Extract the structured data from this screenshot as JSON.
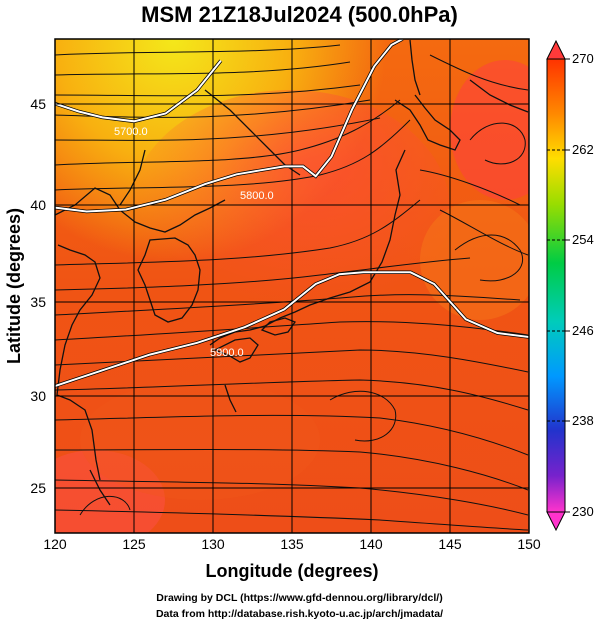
{
  "title": "MSM 21Z18Jul2024 (500.0hPa)",
  "x_axis": {
    "label": "Longitude (degrees)",
    "ticks": [
      120,
      125,
      130,
      135,
      140,
      145,
      150
    ],
    "range": [
      120,
      150
    ]
  },
  "y_axis": {
    "label": "Latitude  (degrees)",
    "ticks": [
      25,
      30,
      35,
      40,
      45
    ],
    "range": [
      22.4,
      47.6
    ]
  },
  "colorbar": {
    "ticks": [
      270,
      262,
      254,
      246,
      238,
      230
    ],
    "range": [
      230,
      270
    ],
    "colors": [
      "#ff33cc",
      "#3333cc",
      "#0088ff",
      "#00cccc",
      "#00cc44",
      "#aadd00",
      "#ffee00",
      "#ff9900",
      "#ff3300"
    ]
  },
  "contours": [
    {
      "label": "5700.0"
    },
    {
      "label": "5800.0"
    },
    {
      "label": "5900.0"
    }
  ],
  "credits": {
    "line1": "Drawing by DCL (https://www.gfd-dennou.org/library/dcl/)",
    "line2": "Data from http://database.rish.kyoto-u.ac.jp/arch/jmadata/"
  },
  "chart_data": {
    "type": "heatmap",
    "title": "MSM 21Z18Jul2024 (500.0hPa)",
    "xlabel": "Longitude (degrees)",
    "ylabel": "Latitude  (degrees)",
    "xlim": [
      120,
      150
    ],
    "ylim": [
      22.4,
      47.6
    ],
    "color_scale": [
      230,
      270
    ],
    "contour_levels": [
      5700,
      5800,
      5900
    ],
    "contour_lines": [
      {
        "level": 5700,
        "lon": [
          120.0,
          121.5,
          123.0,
          125.0,
          127.0,
          129.0,
          130.5
        ],
        "lat": [
          44.3,
          43.9,
          43.6,
          43.4,
          43.8,
          45.0,
          46.5
        ]
      },
      {
        "level": 5800,
        "lon": [
          120.0,
          122.0,
          124.5,
          127.0,
          129.5,
          131.5,
          133.0,
          134.5,
          135.7,
          136.5,
          137.5,
          138.8,
          140.2,
          141.3,
          142.0
        ],
        "lat": [
          39.0,
          38.8,
          38.9,
          39.4,
          40.2,
          40.7,
          40.9,
          41.1,
          41.1,
          40.6,
          41.6,
          44.0,
          46.2,
          47.3,
          47.6
        ]
      },
      {
        "level": 5900,
        "lon": [
          120.0,
          123.0,
          126.0,
          129.0,
          132.0,
          134.5,
          136.5,
          138.0,
          139.5,
          141.0,
          142.5,
          144.0,
          146.0,
          148.0,
          150.0
        ],
        "lat": [
          29.9,
          30.7,
          31.5,
          32.1,
          32.9,
          33.8,
          35.1,
          35.6,
          35.7,
          35.7,
          35.7,
          35.1,
          33.3,
          32.6,
          32.4
        ]
      }
    ]
  }
}
